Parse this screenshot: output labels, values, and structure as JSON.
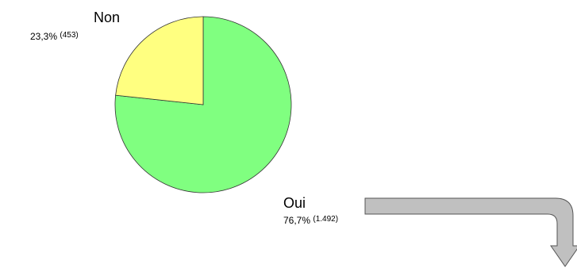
{
  "chart_data": {
    "type": "pie",
    "slices": [
      {
        "label": "Oui",
        "value": 1492,
        "percent_text": "76,7%",
        "count_text": "(1.492)",
        "color": "#80ff80"
      },
      {
        "label": "Non",
        "value": 453,
        "percent_text": "23,3%",
        "count_text": "(453)",
        "color": "#ffff80"
      }
    ],
    "start_angle": "12 o'clock",
    "direction": "clockwise"
  },
  "arrow": {
    "color": "#c0c0c0",
    "stroke": "#555555"
  }
}
